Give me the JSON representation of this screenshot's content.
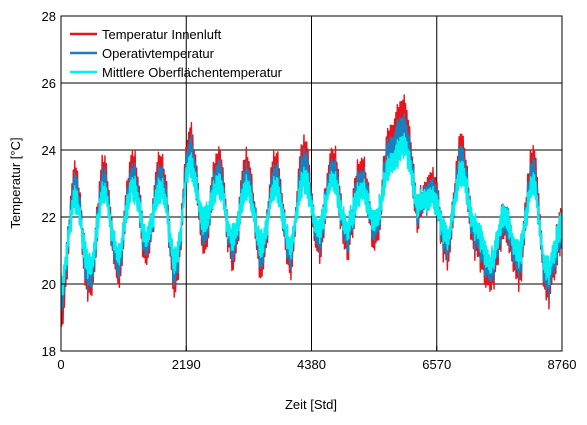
{
  "chart_data": {
    "type": "line",
    "title": "",
    "xlabel": "Zeit [Std]",
    "ylabel": "Temperatur [°C]",
    "xlim": [
      0,
      8760
    ],
    "ylim": [
      18,
      28
    ],
    "xticks": [
      0,
      2190,
      4380,
      6570,
      8760
    ],
    "xtick_labels": [
      "0",
      "2190",
      "4380",
      "6570",
      "8760"
    ],
    "yticks": [
      18,
      20,
      22,
      24,
      26,
      28
    ],
    "ytick_labels": [
      "18",
      "20",
      "22",
      "24",
      "26",
      "28"
    ],
    "grid": true,
    "legend_position": "top-left",
    "series": [
      {
        "name": "Temperatur Innenluft",
        "color": "#e8141b",
        "x": [
          0,
          250,
          500,
          750,
          1000,
          1250,
          1500,
          1750,
          2000,
          2250,
          2500,
          2750,
          3000,
          3250,
          3500,
          3750,
          4000,
          4250,
          4500,
          4750,
          5000,
          5250,
          5500,
          5750,
          6000,
          6250,
          6500,
          6750,
          7000,
          7250,
          7500,
          7750,
          8000,
          8250,
          8500,
          8760
        ],
        "y": [
          19.3,
          23.0,
          20.0,
          23.3,
          20.4,
          23.5,
          21.0,
          23.5,
          20.2,
          24.3,
          21.5,
          23.6,
          21.0,
          23.5,
          20.8,
          23.5,
          20.8,
          23.8,
          21.2,
          23.7,
          21.3,
          23.4,
          21.5,
          24.3,
          25.0,
          22.2,
          23.0,
          21.0,
          23.9,
          21.3,
          20.2,
          21.8,
          20.5,
          23.5,
          19.9,
          21.6
        ]
      },
      {
        "name": "Operativtemperatur",
        "color": "#1a7fbd",
        "x": [
          0,
          250,
          500,
          750,
          1000,
          1250,
          1500,
          1750,
          2000,
          2250,
          2500,
          2750,
          3000,
          3250,
          3500,
          3750,
          4000,
          4250,
          4500,
          4750,
          5000,
          5250,
          5500,
          5750,
          6000,
          6250,
          6500,
          6750,
          7000,
          7250,
          7500,
          7750,
          8000,
          8250,
          8500,
          8760
        ],
        "y": [
          19.7,
          22.8,
          20.2,
          23.0,
          20.6,
          23.2,
          21.2,
          23.2,
          20.4,
          24.0,
          21.7,
          23.3,
          21.2,
          23.2,
          21.0,
          23.2,
          21.0,
          23.5,
          21.4,
          23.4,
          21.5,
          23.1,
          21.7,
          24.0,
          24.6,
          22.3,
          22.8,
          21.2,
          23.6,
          21.5,
          20.4,
          21.9,
          20.7,
          23.2,
          20.1,
          21.6
        ]
      },
      {
        "name": "Mittlere Oberflächentemperatur",
        "color": "#00f0f0",
        "x": [
          0,
          250,
          500,
          750,
          1000,
          1250,
          1500,
          1750,
          2000,
          2250,
          2500,
          2750,
          3000,
          3250,
          3500,
          3750,
          4000,
          4250,
          4500,
          4750,
          5000,
          5250,
          5500,
          5750,
          6000,
          6250,
          6500,
          6750,
          7000,
          7250,
          7500,
          7750,
          8000,
          8250,
          8500,
          8760
        ],
        "y": [
          20.0,
          22.5,
          20.5,
          22.7,
          20.9,
          22.9,
          21.4,
          22.9,
          20.7,
          23.6,
          21.9,
          23.0,
          21.4,
          22.9,
          21.2,
          22.9,
          21.2,
          23.1,
          21.6,
          23.1,
          21.7,
          22.8,
          21.9,
          23.6,
          24.1,
          22.4,
          22.6,
          21.4,
          23.3,
          21.7,
          20.6,
          22.0,
          20.9,
          22.9,
          20.4,
          21.7
        ]
      }
    ]
  }
}
